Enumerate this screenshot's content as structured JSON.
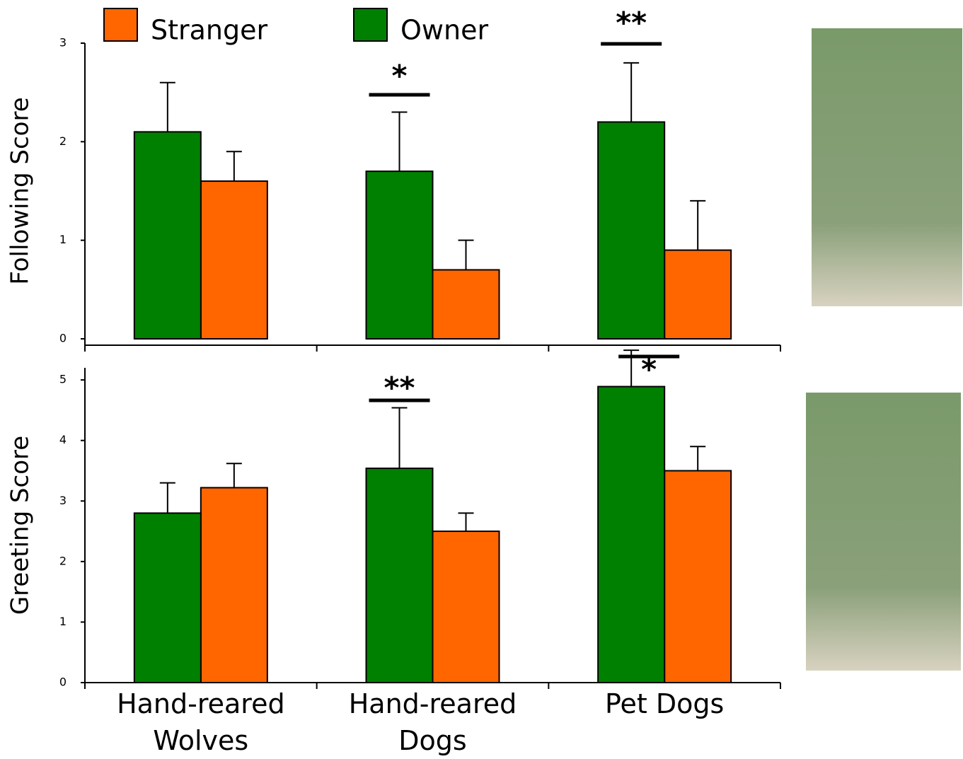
{
  "chart_data": [
    {
      "type": "bar",
      "y_label": "Following Score",
      "series": [
        {
          "name": "Stranger",
          "color": "#ff6600",
          "values": [
            1.6,
            0.7,
            0.9
          ],
          "errors": [
            0.3,
            0.3,
            0.5
          ]
        },
        {
          "name": "Owner",
          "color": "#008000",
          "values": [
            2.1,
            1.7,
            2.2
          ],
          "errors": [
            0.5,
            0.6,
            0.6
          ]
        }
      ],
      "annotations": [
        null,
        "*",
        "**"
      ],
      "ylim": [
        0,
        3
      ],
      "yticks": [
        0,
        1,
        2,
        3
      ],
      "legend": "top"
    },
    {
      "type": "bar",
      "y_label": "Greeting Score",
      "categories": [
        "Hand-reared\nWolves",
        "Hand-reared\nDogs",
        "Pet Dogs"
      ],
      "series": [
        {
          "color": "#ff6600",
          "values": [
            3.22,
            2.5,
            3.5
          ],
          "errors": [
            0.4,
            0.3,
            0.4
          ]
        },
        {
          "color": "#008000",
          "values": [
            2.8,
            3.54,
            4.89
          ],
          "errors": [
            0.5,
            1.0,
            0.6
          ]
        }
      ],
      "annotations": [
        null,
        "**",
        "*"
      ],
      "ylim": [
        0,
        5.2
      ],
      "yticks": [
        0,
        1,
        2,
        3,
        4,
        5
      ]
    }
  ]
}
